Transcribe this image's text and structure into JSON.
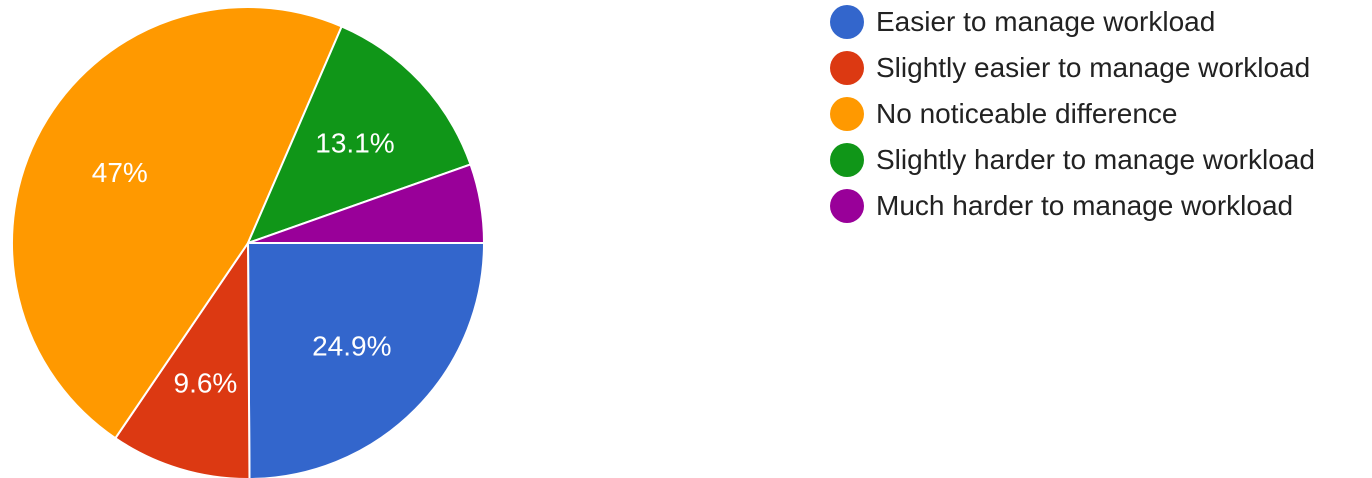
{
  "chart_data": {
    "type": "pie",
    "slices": [
      {
        "name": "Easier to manage workload",
        "value": 24.9,
        "label": "24.9%",
        "color": "#3366cc"
      },
      {
        "name": "Slightly easier to manage workload",
        "value": 9.6,
        "label": "9.6%",
        "color": "#dc3912"
      },
      {
        "name": "No noticeable difference",
        "value": 47.0,
        "label": "47%",
        "color": "#ff9900"
      },
      {
        "name": "Slightly harder to manage workload",
        "value": 13.1,
        "label": "13.1%",
        "color": "#109618"
      },
      {
        "name": "Much harder to manage workload",
        "value": 5.4,
        "label": "",
        "color": "#990099"
      }
    ],
    "legend_position": "right"
  }
}
